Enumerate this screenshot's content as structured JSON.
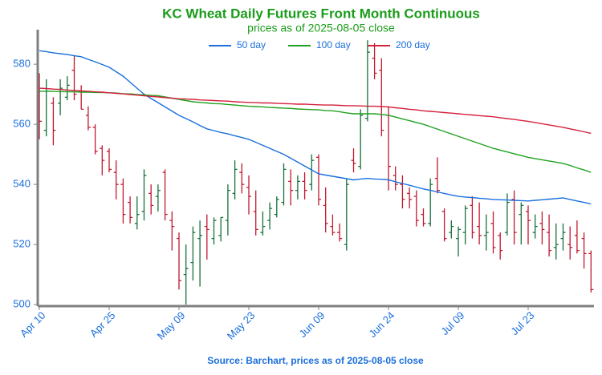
{
  "chart_data": {
    "type": "ohlc",
    "title": "KC Wheat Daily Futures Front Month Continuous",
    "subtitle": "prices as of 2025-08-05 close",
    "source": "Source: Barchart, prices as of 2025-08-05 close",
    "categories": [
      "Apr 10",
      null,
      null,
      null,
      null,
      null,
      null,
      null,
      null,
      null,
      "Apr 25",
      null,
      null,
      null,
      null,
      null,
      null,
      null,
      null,
      null,
      "May 09",
      null,
      null,
      null,
      null,
      null,
      null,
      null,
      null,
      null,
      "May 23",
      null,
      null,
      null,
      null,
      null,
      null,
      null,
      null,
      null,
      "Jun 09",
      null,
      null,
      null,
      null,
      null,
      null,
      null,
      null,
      null,
      "Jun 24",
      null,
      null,
      null,
      null,
      null,
      null,
      null,
      null,
      null,
      "Jul 09",
      null,
      null,
      null,
      null,
      null,
      null,
      null,
      null,
      null,
      "Jul 23",
      null,
      null,
      null,
      null,
      null,
      null,
      null,
      null,
      null
    ],
    "open": [
      568,
      558,
      567,
      567,
      569,
      578,
      571,
      563,
      559,
      552,
      551,
      544,
      540,
      534,
      527,
      531,
      537,
      536,
      544,
      528,
      522,
      510,
      514,
      522,
      526,
      522,
      523,
      528,
      537,
      544,
      539,
      531,
      524,
      528,
      530,
      534,
      541,
      538,
      541,
      540,
      549,
      533,
      526,
      524,
      520,
      548,
      546,
      562,
      582,
      578,
      563,
      543,
      540,
      537,
      536,
      530,
      527,
      542,
      531,
      524,
      522,
      524,
      533,
      526,
      523,
      527,
      523,
      524,
      535,
      530,
      531,
      524,
      527,
      524,
      519,
      522,
      520,
      523,
      522,
      517
    ],
    "high": [
      577,
      575,
      569,
      575,
      576,
      583,
      573,
      566,
      560,
      553,
      552,
      548,
      542,
      536,
      536,
      545,
      540,
      540,
      545,
      531,
      524,
      520,
      526,
      528,
      530,
      529,
      529,
      540,
      548,
      547,
      543,
      538,
      531,
      534,
      536,
      547,
      545,
      543,
      544,
      550,
      550,
      539,
      530,
      527,
      542,
      552,
      565,
      588,
      587,
      582,
      566,
      546,
      543,
      539,
      538,
      532,
      542,
      549,
      532,
      528,
      526,
      533,
      536,
      534,
      530,
      531,
      524,
      537,
      538,
      534,
      533,
      530,
      531,
      530,
      527,
      527,
      526,
      528,
      524,
      518
    ],
    "low": [
      555,
      556,
      553,
      563,
      568,
      568,
      565,
      558,
      550,
      543,
      544,
      535,
      527,
      527,
      525,
      528,
      530,
      531,
      528,
      518,
      505,
      500,
      508,
      506,
      515,
      520,
      521,
      523,
      535,
      537,
      530,
      523,
      523,
      525,
      529,
      533,
      533,
      535,
      535,
      538,
      533,
      524,
      523,
      521,
      518,
      544,
      545,
      561,
      575,
      556,
      538,
      538,
      532,
      532,
      526,
      526,
      526,
      537,
      521,
      522,
      516,
      520,
      522,
      520,
      518,
      517,
      515,
      523,
      520,
      520,
      520,
      522,
      520,
      516,
      515,
      518,
      515,
      517,
      512,
      504
    ],
    "close": [
      561,
      571,
      558,
      572,
      573,
      570,
      565,
      559,
      551,
      548,
      545,
      540,
      530,
      529,
      530,
      543,
      533,
      538,
      530,
      526,
      508,
      512,
      524,
      523,
      525,
      528,
      529,
      538,
      545,
      540,
      536,
      525,
      526,
      532,
      535,
      545,
      538,
      541,
      538,
      548,
      535,
      527,
      524,
      522,
      540,
      547,
      563,
      584,
      577,
      558,
      546,
      540,
      535,
      535,
      528,
      527,
      540,
      538,
      522,
      526,
      525,
      532,
      524,
      523,
      524,
      519,
      518,
      534,
      524,
      533,
      528,
      526,
      525,
      518,
      520,
      524,
      519,
      518,
      517,
      505
    ],
    "up_color": "#17703a",
    "down_color": "#c0182e",
    "series": [
      {
        "name": "50 day",
        "type": "line",
        "color": "#1a6fdb",
        "values": [
          584.5,
          584.2,
          583.8,
          583.5,
          583.2,
          582.8,
          582.5,
          581.6,
          580.8,
          579.9,
          579,
          577.5,
          576,
          574,
          572,
          570,
          568.6,
          567.2,
          565.8,
          564.4,
          563,
          561.9,
          560.8,
          559.6,
          558.5,
          557.9,
          557.3,
          556.8,
          556.2,
          555.6,
          555,
          554,
          553,
          552,
          551,
          550,
          548.7,
          547.4,
          546.1,
          544.8,
          543.5,
          543.1,
          542.7,
          542.3,
          541.9,
          541.5,
          541.8,
          542,
          541.8,
          541.7,
          541.5,
          540.9,
          540.3,
          539.7,
          539.1,
          538.5,
          538,
          537.5,
          537,
          536.5,
          536,
          535.8,
          535.6,
          535.4,
          535.2,
          535,
          534.9,
          534.8,
          534.7,
          534.6,
          534.5,
          534.7,
          534.9,
          535.1,
          535.3,
          535.5,
          535,
          534.5,
          534,
          533.5
        ]
      },
      {
        "name": "100 day",
        "type": "line",
        "color": "#1fa11f",
        "values": [
          571,
          571,
          571,
          570.9,
          570.8,
          570.8,
          570.7,
          570.7,
          570.6,
          570.6,
          570.5,
          570.4,
          570.2,
          570.1,
          569.9,
          569.8,
          569.6,
          569.5,
          569.1,
          568.7,
          568.3,
          567.9,
          567.5,
          567.3,
          567.1,
          566.9,
          566.8,
          566.6,
          566.4,
          566.2,
          566,
          565.9,
          565.8,
          565.6,
          565.5,
          565.4,
          565.3,
          565.1,
          565,
          564.9,
          564.8,
          564.6,
          564.5,
          564.2,
          563.8,
          563.5,
          563.5,
          563.5,
          563.5,
          563.3,
          563,
          562.4,
          561.8,
          561.2,
          560.6,
          560,
          559.2,
          558.4,
          557.6,
          556.8,
          556,
          555.2,
          554.4,
          553.6,
          552.8,
          552,
          551.4,
          550.8,
          550.2,
          549.6,
          549,
          548.6,
          548.2,
          547.8,
          547.4,
          547,
          546.3,
          545.5,
          544.8,
          544
        ]
      },
      {
        "name": "200 day",
        "type": "line",
        "color": "#d4213d",
        "values": [
          572,
          571.9,
          571.7,
          571.6,
          571.4,
          571.3,
          571.1,
          571,
          570.8,
          570.7,
          570.5,
          570.3,
          570.1,
          569.9,
          569.7,
          569.5,
          569.3,
          569.1,
          568.9,
          568.7,
          568.5,
          568.4,
          568.3,
          568.1,
          568,
          567.9,
          567.8,
          567.7,
          567.5,
          567.4,
          567.3,
          567.2,
          567.1,
          567.1,
          567,
          566.9,
          566.8,
          566.7,
          566.7,
          566.6,
          566.5,
          566.4,
          566.4,
          566.3,
          566.2,
          566.2,
          566.1,
          566,
          566,
          565.9,
          565.8,
          565.5,
          565.3,
          565,
          564.8,
          564.5,
          564.3,
          564.1,
          563.9,
          563.7,
          563.5,
          563.3,
          563.1,
          562.9,
          562.7,
          562.5,
          562.2,
          561.9,
          561.6,
          561.3,
          561,
          560.6,
          560.2,
          559.8,
          559.4,
          559,
          558.5,
          558,
          557.5,
          557
        ]
      }
    ],
    "ylim": [
      499.5,
      591.5
    ],
    "yticks": [
      500,
      520,
      540,
      560,
      580
    ],
    "title_color": "#1a9c1a",
    "label_color": "#1a6fdb",
    "axis_color": "#808080"
  }
}
